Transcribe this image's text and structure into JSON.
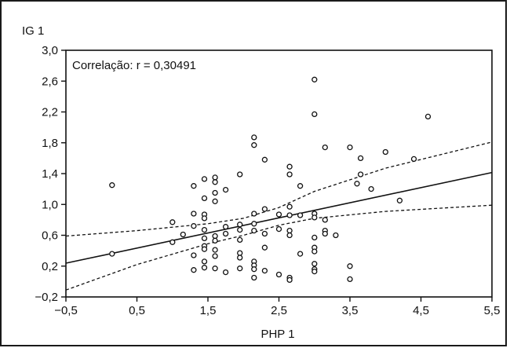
{
  "chart_data": {
    "type": "scatter",
    "title": "",
    "xlabel": "PHP 1",
    "ylabel": "IG 1",
    "xlim": [
      -0.5,
      5.5
    ],
    "ylim": [
      -0.2,
      3.0
    ],
    "xticks": [
      "−0,5",
      "0,5",
      "1,5",
      "2,5",
      "3,5",
      "4,5",
      "5,5"
    ],
    "yticks": [
      "3,0",
      "2,6",
      "2,2",
      "1,8",
      "1,4",
      "1,0",
      "0,6",
      "0,2",
      "−0,2"
    ],
    "annotation": "Correlação: r = 0,30491",
    "grid": false,
    "regression": {
      "intercept": 0.336,
      "slope": 0.196
    },
    "confidence_band": {
      "upper": [
        [
          -0.5,
          0.59
        ],
        [
          0.5,
          0.66
        ],
        [
          1.5,
          0.75
        ],
        [
          2.0,
          0.82
        ],
        [
          2.5,
          0.96
        ],
        [
          3.0,
          1.17
        ],
        [
          4.0,
          1.47
        ],
        [
          5.5,
          1.81
        ]
      ],
      "lower": [
        [
          -0.5,
          -0.11
        ],
        [
          0.5,
          0.22
        ],
        [
          1.5,
          0.49
        ],
        [
          2.0,
          0.6
        ],
        [
          2.5,
          0.73
        ],
        [
          3.0,
          0.82
        ],
        [
          4.0,
          0.91
        ],
        [
          5.5,
          0.99
        ]
      ]
    },
    "points": [
      [
        0.15,
        1.25
      ],
      [
        0.15,
        0.36
      ],
      [
        1.0,
        0.77
      ],
      [
        1.0,
        0.51
      ],
      [
        1.15,
        0.61
      ],
      [
        1.3,
        1.24
      ],
      [
        1.3,
        0.88
      ],
      [
        1.3,
        0.72
      ],
      [
        1.3,
        0.34
      ],
      [
        1.3,
        0.15
      ],
      [
        1.45,
        1.33
      ],
      [
        1.45,
        1.08
      ],
      [
        1.45,
        0.87
      ],
      [
        1.45,
        0.82
      ],
      [
        1.45,
        0.67
      ],
      [
        1.45,
        0.56
      ],
      [
        1.45,
        0.46
      ],
      [
        1.45,
        0.42
      ],
      [
        1.45,
        0.26
      ],
      [
        1.45,
        0.18
      ],
      [
        1.6,
        1.35
      ],
      [
        1.6,
        1.29
      ],
      [
        1.6,
        1.15
      ],
      [
        1.6,
        1.04
      ],
      [
        1.6,
        0.59
      ],
      [
        1.6,
        0.53
      ],
      [
        1.6,
        0.41
      ],
      [
        1.6,
        0.33
      ],
      [
        1.6,
        0.17
      ],
      [
        1.75,
        1.19
      ],
      [
        1.75,
        0.71
      ],
      [
        1.75,
        0.62
      ],
      [
        1.75,
        0.12
      ],
      [
        1.95,
        1.39
      ],
      [
        1.95,
        0.74
      ],
      [
        1.95,
        0.67
      ],
      [
        1.95,
        0.54
      ],
      [
        1.95,
        0.37
      ],
      [
        1.95,
        0.31
      ],
      [
        1.95,
        0.17
      ],
      [
        2.15,
        1.87
      ],
      [
        2.15,
        1.77
      ],
      [
        2.15,
        0.88
      ],
      [
        2.15,
        0.75
      ],
      [
        2.15,
        0.66
      ],
      [
        2.15,
        0.26
      ],
      [
        2.15,
        0.21
      ],
      [
        2.15,
        0.16
      ],
      [
        2.15,
        0.05
      ],
      [
        2.3,
        1.58
      ],
      [
        2.3,
        0.94
      ],
      [
        2.3,
        0.62
      ],
      [
        2.3,
        0.44
      ],
      [
        2.3,
        0.14
      ],
      [
        2.5,
        0.87
      ],
      [
        2.5,
        0.68
      ],
      [
        2.5,
        0.09
      ],
      [
        2.65,
        1.49
      ],
      [
        2.65,
        1.39
      ],
      [
        2.65,
        0.97
      ],
      [
        2.65,
        0.86
      ],
      [
        2.65,
        0.66
      ],
      [
        2.65,
        0.6
      ],
      [
        2.65,
        0.05
      ],
      [
        2.65,
        0.02
      ],
      [
        2.8,
        1.24
      ],
      [
        2.8,
        0.86
      ],
      [
        2.8,
        0.36
      ],
      [
        3.0,
        2.62
      ],
      [
        3.0,
        2.17
      ],
      [
        3.0,
        0.88
      ],
      [
        3.0,
        0.83
      ],
      [
        3.0,
        0.57
      ],
      [
        3.0,
        0.44
      ],
      [
        3.0,
        0.39
      ],
      [
        3.0,
        0.23
      ],
      [
        3.0,
        0.16
      ],
      [
        3.0,
        0.13
      ],
      [
        3.15,
        1.74
      ],
      [
        3.15,
        0.8
      ],
      [
        3.15,
        0.66
      ],
      [
        3.15,
        0.62
      ],
      [
        3.3,
        0.6
      ],
      [
        3.5,
        1.74
      ],
      [
        3.5,
        0.2
      ],
      [
        3.5,
        0.03
      ],
      [
        3.6,
        1.27
      ],
      [
        3.65,
        1.6
      ],
      [
        3.65,
        1.39
      ],
      [
        3.8,
        1.2
      ],
      [
        4.0,
        1.68
      ],
      [
        4.2,
        1.05
      ],
      [
        4.4,
        1.59
      ],
      [
        4.6,
        2.14
      ]
    ]
  }
}
